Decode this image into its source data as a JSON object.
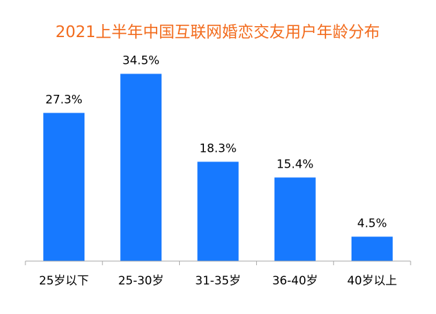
{
  "chart_data": {
    "type": "bar",
    "title": "2021上半年中国互联网婚恋交友用户年龄分布",
    "categories": [
      "25岁以下",
      "25-30岁",
      "31-35岁",
      "36-40岁",
      "40岁以上"
    ],
    "values": [
      27.3,
      34.5,
      18.3,
      15.4,
      4.5
    ],
    "value_labels": [
      "27.3%",
      "34.5%",
      "18.3%",
      "15.4%",
      "4.5%"
    ],
    "ylim": [
      0,
      40
    ],
    "xlabel": "",
    "ylabel": "",
    "grid": false,
    "legend": "none",
    "colors": {
      "bar": "#1779FF",
      "title": "#F26B1D",
      "axis": "#A6A6A6",
      "text": "#000000"
    }
  }
}
